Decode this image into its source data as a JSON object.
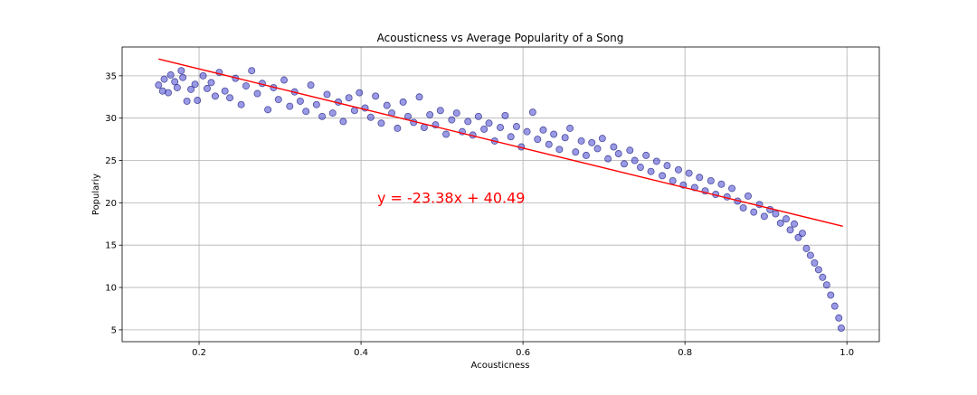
{
  "chart_data": {
    "type": "scatter",
    "title": "Acousticness vs Average Popularity of a Song",
    "xlabel": "Acousticness",
    "ylabel": "Populariy",
    "xlim": [
      0.105,
      1.04
    ],
    "ylim": [
      3.6,
      38.4
    ],
    "x_ticks": [
      0.2,
      0.4,
      0.6,
      0.8,
      1.0
    ],
    "x_tick_labels": [
      "0.2",
      "0.4",
      "0.6",
      "0.8",
      "1.0"
    ],
    "y_ticks": [
      5,
      10,
      15,
      20,
      25,
      30,
      35
    ],
    "y_tick_labels": [
      "5",
      "10",
      "15",
      "20",
      "25",
      "30",
      "35"
    ],
    "grid": true,
    "point_color": "#3333cc",
    "point_edge_color": "#1a1a7a",
    "point_alpha": 0.5,
    "fit_line": {
      "slope": -23.38,
      "intercept": 40.49,
      "x_range": [
        0.15,
        0.995
      ],
      "color": "#ff0000",
      "label": "y = -23.38x + 40.49",
      "label_x": 0.42,
      "label_y": 20.0
    },
    "points": [
      [
        0.15,
        33.9
      ],
      [
        0.155,
        33.2
      ],
      [
        0.157,
        34.6
      ],
      [
        0.162,
        33.0
      ],
      [
        0.165,
        35.1
      ],
      [
        0.17,
        34.3
      ],
      [
        0.173,
        33.6
      ],
      [
        0.178,
        35.6
      ],
      [
        0.18,
        34.8
      ],
      [
        0.185,
        32.0
      ],
      [
        0.19,
        33.4
      ],
      [
        0.195,
        34.0
      ],
      [
        0.198,
        32.1
      ],
      [
        0.205,
        35.0
      ],
      [
        0.21,
        33.5
      ],
      [
        0.215,
        34.2
      ],
      [
        0.22,
        32.6
      ],
      [
        0.225,
        35.4
      ],
      [
        0.232,
        33.2
      ],
      [
        0.238,
        32.4
      ],
      [
        0.245,
        34.7
      ],
      [
        0.252,
        31.6
      ],
      [
        0.258,
        33.8
      ],
      [
        0.265,
        35.6
      ],
      [
        0.272,
        32.9
      ],
      [
        0.278,
        34.1
      ],
      [
        0.285,
        31.0
      ],
      [
        0.292,
        33.6
      ],
      [
        0.298,
        32.2
      ],
      [
        0.305,
        34.5
      ],
      [
        0.312,
        31.4
      ],
      [
        0.318,
        33.1
      ],
      [
        0.325,
        32.0
      ],
      [
        0.332,
        30.8
      ],
      [
        0.338,
        33.9
      ],
      [
        0.345,
        31.6
      ],
      [
        0.352,
        30.2
      ],
      [
        0.358,
        32.8
      ],
      [
        0.365,
        30.6
      ],
      [
        0.372,
        31.9
      ],
      [
        0.378,
        29.6
      ],
      [
        0.385,
        32.4
      ],
      [
        0.392,
        30.9
      ],
      [
        0.398,
        33.0
      ],
      [
        0.405,
        31.2
      ],
      [
        0.412,
        30.1
      ],
      [
        0.418,
        32.6
      ],
      [
        0.425,
        29.4
      ],
      [
        0.432,
        31.5
      ],
      [
        0.438,
        30.6
      ],
      [
        0.445,
        28.8
      ],
      [
        0.452,
        31.9
      ],
      [
        0.458,
        30.2
      ],
      [
        0.465,
        29.5
      ],
      [
        0.472,
        32.5
      ],
      [
        0.478,
        28.9
      ],
      [
        0.485,
        30.4
      ],
      [
        0.492,
        29.2
      ],
      [
        0.498,
        30.9
      ],
      [
        0.505,
        28.1
      ],
      [
        0.512,
        29.8
      ],
      [
        0.518,
        30.6
      ],
      [
        0.525,
        28.4
      ],
      [
        0.532,
        29.6
      ],
      [
        0.538,
        28.0
      ],
      [
        0.545,
        30.2
      ],
      [
        0.552,
        28.7
      ],
      [
        0.558,
        29.4
      ],
      [
        0.565,
        27.3
      ],
      [
        0.572,
        28.9
      ],
      [
        0.578,
        30.3
      ],
      [
        0.585,
        27.8
      ],
      [
        0.592,
        29.0
      ],
      [
        0.598,
        26.6
      ],
      [
        0.605,
        28.4
      ],
      [
        0.612,
        30.7
      ],
      [
        0.618,
        27.5
      ],
      [
        0.625,
        28.6
      ],
      [
        0.632,
        26.9
      ],
      [
        0.638,
        28.1
      ],
      [
        0.645,
        26.3
      ],
      [
        0.652,
        27.7
      ],
      [
        0.658,
        28.8
      ],
      [
        0.665,
        26.0
      ],
      [
        0.672,
        27.3
      ],
      [
        0.678,
        25.6
      ],
      [
        0.685,
        27.1
      ],
      [
        0.692,
        26.4
      ],
      [
        0.698,
        27.6
      ],
      [
        0.705,
        25.2
      ],
      [
        0.712,
        26.6
      ],
      [
        0.718,
        25.8
      ],
      [
        0.725,
        24.6
      ],
      [
        0.732,
        26.2
      ],
      [
        0.738,
        25.0
      ],
      [
        0.745,
        24.2
      ],
      [
        0.752,
        25.6
      ],
      [
        0.758,
        23.7
      ],
      [
        0.765,
        24.9
      ],
      [
        0.772,
        23.2
      ],
      [
        0.778,
        24.4
      ],
      [
        0.785,
        22.6
      ],
      [
        0.792,
        23.9
      ],
      [
        0.798,
        22.1
      ],
      [
        0.805,
        23.5
      ],
      [
        0.812,
        21.8
      ],
      [
        0.818,
        23.0
      ],
      [
        0.825,
        21.4
      ],
      [
        0.832,
        22.6
      ],
      [
        0.838,
        21.0
      ],
      [
        0.845,
        22.2
      ],
      [
        0.852,
        20.7
      ],
      [
        0.858,
        21.7
      ],
      [
        0.865,
        20.2
      ],
      [
        0.872,
        19.4
      ],
      [
        0.878,
        20.8
      ],
      [
        0.885,
        18.9
      ],
      [
        0.892,
        19.8
      ],
      [
        0.898,
        18.4
      ],
      [
        0.905,
        19.2
      ],
      [
        0.912,
        18.7
      ],
      [
        0.918,
        17.6
      ],
      [
        0.925,
        18.1
      ],
      [
        0.93,
        16.8
      ],
      [
        0.935,
        17.5
      ],
      [
        0.94,
        15.9
      ],
      [
        0.945,
        16.4
      ],
      [
        0.95,
        14.6
      ],
      [
        0.955,
        13.8
      ],
      [
        0.96,
        12.9
      ],
      [
        0.965,
        12.1
      ],
      [
        0.97,
        11.2
      ],
      [
        0.975,
        10.3
      ],
      [
        0.98,
        9.1
      ],
      [
        0.985,
        7.8
      ],
      [
        0.99,
        6.4
      ],
      [
        0.993,
        5.2
      ]
    ]
  }
}
